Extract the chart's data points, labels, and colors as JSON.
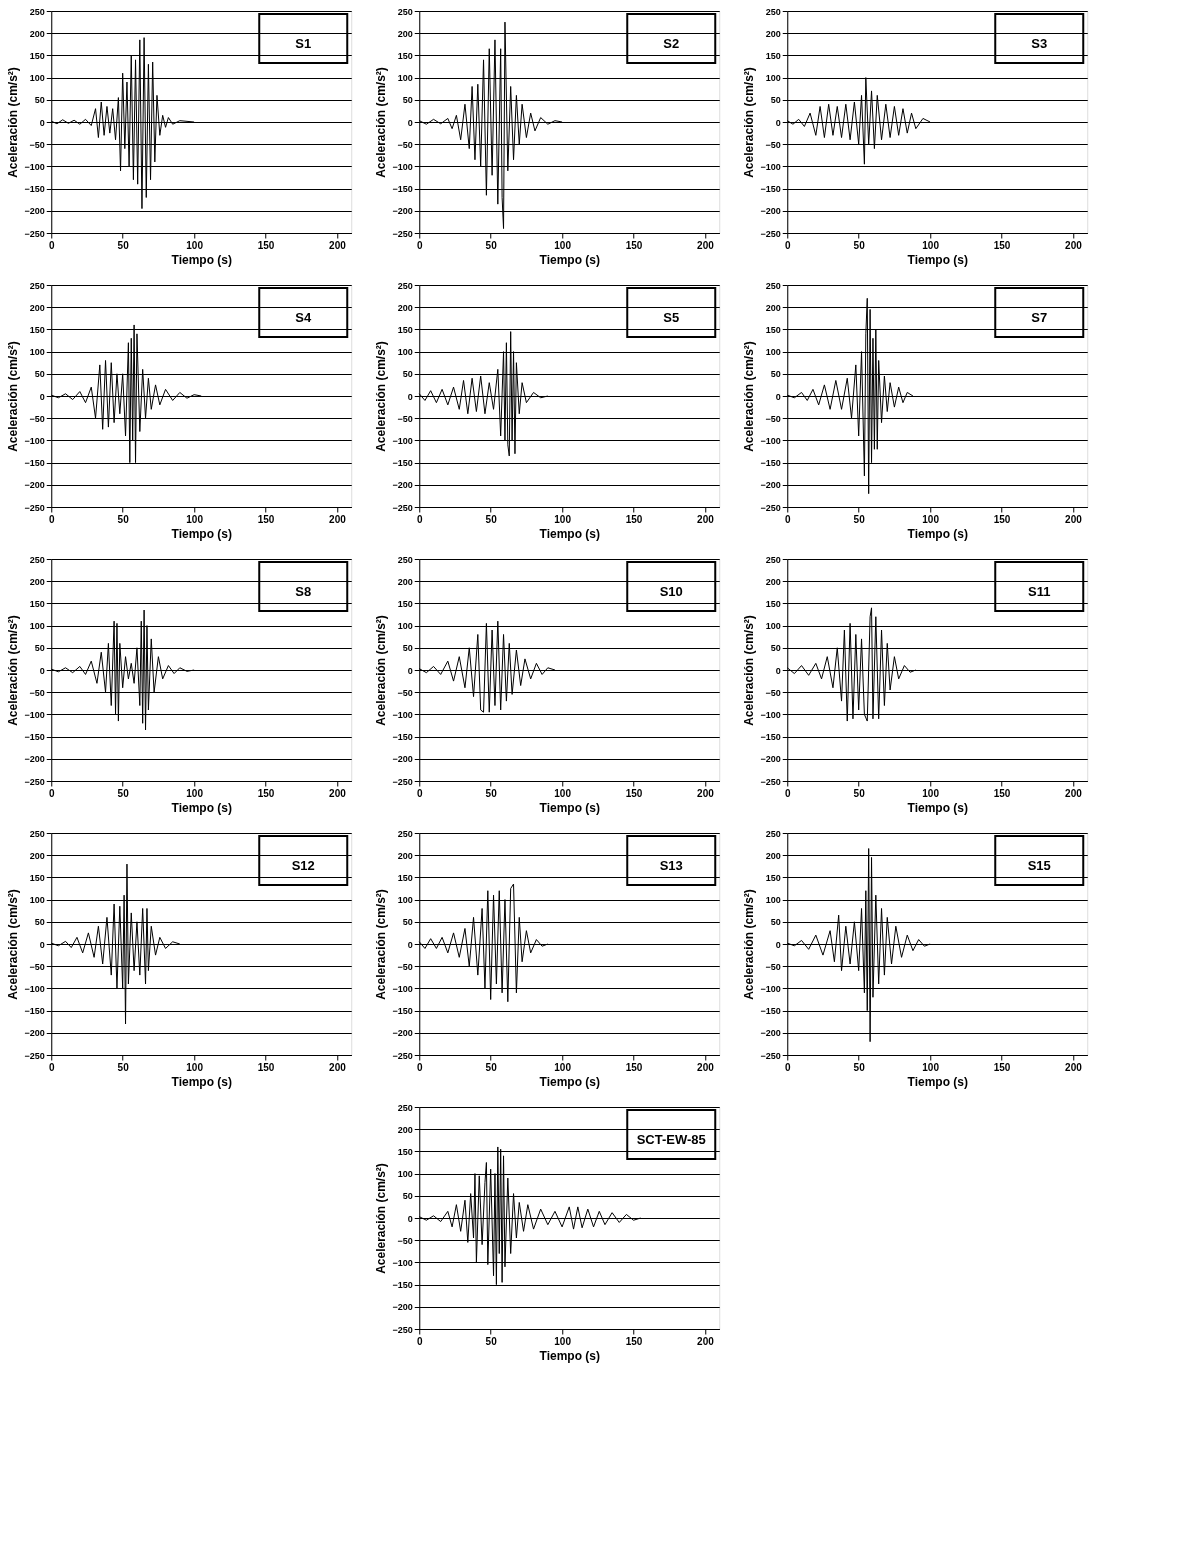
{
  "chart_data": [
    {
      "type": "line",
      "title": "S1",
      "xlabel": "Tiempo (s)",
      "ylabel": "Aceleración (cm/s²)",
      "xlim": [
        0,
        210
      ],
      "ylim": [
        -250,
        250
      ],
      "xticks": [
        0,
        50,
        100,
        150,
        200
      ],
      "yticks": [
        -250,
        -200,
        -150,
        -100,
        -50,
        0,
        50,
        100,
        150,
        200,
        250
      ],
      "grid": "y",
      "x": [
        0,
        4,
        8,
        12,
        16,
        20,
        24,
        28,
        31,
        33,
        35,
        37,
        39,
        41,
        43,
        45,
        47,
        48.5,
        50,
        51.5,
        53,
        54.5,
        56,
        57.5,
        59,
        60.5,
        62,
        63.5,
        65,
        66.5,
        68,
        69.5,
        71,
        72.5,
        74,
        76,
        78,
        80,
        82,
        85,
        90,
        100
      ],
      "series": [
        {
          "color": "#000000",
          "values": [
            2,
            -4,
            5,
            -3,
            4,
            -5,
            6,
            -8,
            30,
            -35,
            45,
            -30,
            35,
            -25,
            30,
            -40,
            55,
            -110,
            110,
            -60,
            90,
            -100,
            150,
            -130,
            140,
            -140,
            185,
            -195,
            190,
            -170,
            130,
            -130,
            135,
            -90,
            60,
            -30,
            15,
            -12,
            10,
            -5,
            3,
            0
          ]
        }
      ]
    },
    {
      "type": "line",
      "title": "S2",
      "xlabel": "Tiempo (s)",
      "ylabel": "Aceleración (cm/s²)",
      "xlim": [
        0,
        210
      ],
      "ylim": [
        -250,
        250
      ],
      "xticks": [
        0,
        50,
        100,
        150,
        200
      ],
      "yticks": [
        -250,
        -200,
        -150,
        -100,
        -50,
        0,
        50,
        100,
        150,
        200,
        250
      ],
      "grid": "y",
      "x": [
        0,
        5,
        10,
        15,
        20,
        23,
        26,
        29,
        32,
        35,
        37,
        39,
        41,
        43,
        45,
        47,
        49,
        51,
        53,
        55,
        57,
        58,
        59,
        60,
        62,
        64,
        66,
        68,
        70,
        72,
        75,
        78,
        81,
        85,
        90,
        95,
        100
      ],
      "series": [
        {
          "color": "#000000",
          "values": [
            3,
            -5,
            6,
            -4,
            8,
            -15,
            15,
            -40,
            40,
            -60,
            80,
            -85,
            85,
            -100,
            140,
            -165,
            165,
            -120,
            185,
            -185,
            165,
            -170,
            -240,
            225,
            -110,
            80,
            -85,
            60,
            -50,
            40,
            -35,
            20,
            -20,
            10,
            -5,
            3,
            0
          ]
        }
      ]
    },
    {
      "type": "line",
      "title": "S3",
      "xlabel": "Tiempo (s)",
      "ylabel": "Aceleración (cm/s²)",
      "xlim": [
        0,
        210
      ],
      "ylim": [
        -250,
        250
      ],
      "xticks": [
        0,
        50,
        100,
        150,
        200
      ],
      "yticks": [
        -250,
        -200,
        -150,
        -100,
        -50,
        0,
        50,
        100,
        150,
        200,
        250
      ],
      "grid": "y",
      "x": [
        0,
        4,
        8,
        12,
        16,
        20,
        23,
        26,
        29,
        32,
        35,
        38,
        41,
        44,
        47,
        50,
        52,
        54,
        55,
        57,
        59,
        61,
        63,
        66,
        69,
        72,
        75,
        78,
        81,
        84,
        87,
        90,
        95,
        100
      ],
      "series": [
        {
          "color": "#000000",
          "values": [
            3,
            -5,
            6,
            -10,
            20,
            -30,
            35,
            -35,
            40,
            -30,
            35,
            -35,
            40,
            -40,
            45,
            -50,
            60,
            -95,
            100,
            -50,
            70,
            -60,
            60,
            -40,
            40,
            -35,
            35,
            -30,
            30,
            -25,
            20,
            -15,
            8,
            0
          ]
        }
      ]
    },
    {
      "type": "line",
      "title": "S4",
      "xlabel": "Tiempo (s)",
      "ylabel": "Aceleración (cm/s²)",
      "xlim": [
        0,
        210
      ],
      "ylim": [
        -250,
        250
      ],
      "xticks": [
        0,
        50,
        100,
        150,
        200
      ],
      "yticks": [
        -250,
        -200,
        -150,
        -100,
        -50,
        0,
        50,
        100,
        150,
        200,
        250
      ],
      "grid": "y",
      "x": [
        0,
        5,
        10,
        15,
        20,
        24,
        28,
        31,
        34,
        36,
        38,
        40,
        42,
        44,
        46,
        48,
        50,
        52,
        54,
        55,
        56,
        57,
        58,
        59,
        60,
        62,
        64,
        66,
        68,
        70,
        73,
        76,
        80,
        85,
        90,
        95,
        100,
        105
      ],
      "series": [
        {
          "color": "#000000",
          "values": [
            2,
            -4,
            5,
            -8,
            10,
            -15,
            20,
            -50,
            70,
            -75,
            80,
            -70,
            75,
            -60,
            50,
            -40,
            50,
            -90,
            120,
            -150,
            130,
            -100,
            160,
            -150,
            140,
            -80,
            60,
            -50,
            40,
            -30,
            25,
            -20,
            15,
            -10,
            8,
            -5,
            3,
            0
          ]
        }
      ]
    },
    {
      "type": "line",
      "title": "S5",
      "xlabel": "Tiempo (s)",
      "ylabel": "Aceleración (cm/s²)",
      "xlim": [
        0,
        210
      ],
      "ylim": [
        -250,
        250
      ],
      "xticks": [
        0,
        50,
        100,
        150,
        200
      ],
      "yticks": [
        -250,
        -200,
        -150,
        -100,
        -50,
        0,
        50,
        100,
        150,
        200,
        250
      ],
      "grid": "y",
      "x": [
        0,
        4,
        8,
        12,
        16,
        20,
        24,
        28,
        31,
        34,
        37,
        40,
        43,
        46,
        49,
        52,
        55,
        57,
        59,
        60,
        61,
        62,
        63,
        64,
        65,
        66,
        67,
        68,
        70,
        72,
        75,
        80,
        85,
        90
      ],
      "series": [
        {
          "color": "#000000",
          "values": [
            5,
            -10,
            12,
            -15,
            15,
            -20,
            20,
            -30,
            35,
            -40,
            40,
            -35,
            45,
            -40,
            30,
            -30,
            60,
            -90,
            100,
            -100,
            120,
            -110,
            -135,
            145,
            -100,
            100,
            -130,
            75,
            -40,
            30,
            -15,
            8,
            -4,
            0
          ]
        }
      ]
    },
    {
      "type": "line",
      "title": "S7",
      "xlabel": "Tiempo (s)",
      "ylabel": "Aceleración (cm/s²)",
      "xlim": [
        0,
        210
      ],
      "ylim": [
        -250,
        250
      ],
      "xticks": [
        0,
        50,
        100,
        150,
        200
      ],
      "yticks": [
        -250,
        -200,
        -150,
        -100,
        -50,
        0,
        50,
        100,
        150,
        200,
        250
      ],
      "grid": "y",
      "x": [
        0,
        5,
        10,
        14,
        18,
        22,
        26,
        30,
        34,
        38,
        42,
        45,
        48,
        50,
        52,
        54,
        55,
        56,
        57,
        58,
        59,
        60,
        61,
        62,
        63,
        64,
        66,
        68,
        70,
        72,
        75,
        78,
        81,
        84,
        88
      ],
      "series": [
        {
          "color": "#000000",
          "values": [
            2,
            -4,
            8,
            -10,
            15,
            -20,
            25,
            -30,
            35,
            -30,
            40,
            -50,
            70,
            -90,
            100,
            -180,
            140,
            220,
            -220,
            195,
            -150,
            130,
            -120,
            150,
            -120,
            80,
            -60,
            45,
            -35,
            30,
            -25,
            20,
            -15,
            8,
            0
          ]
        }
      ]
    },
    {
      "type": "line",
      "title": "S8",
      "xlabel": "Tiempo (s)",
      "ylabel": "Aceleración (cm/s²)",
      "xlim": [
        0,
        210
      ],
      "ylim": [
        -250,
        250
      ],
      "xticks": [
        0,
        50,
        100,
        150,
        200
      ],
      "yticks": [
        -250,
        -200,
        -150,
        -100,
        -50,
        0,
        50,
        100,
        150,
        200,
        250
      ],
      "grid": "y",
      "x": [
        0,
        5,
        10,
        15,
        20,
        24,
        28,
        32,
        35,
        38,
        40,
        42,
        44,
        45,
        46,
        47,
        48,
        50,
        52,
        54,
        56,
        58,
        60,
        62,
        63,
        64,
        65,
        66,
        67,
        68,
        70,
        72,
        75,
        78,
        82,
        86,
        90,
        95,
        100
      ],
      "series": [
        {
          "color": "#000000",
          "values": [
            2,
            -4,
            5,
            -6,
            8,
            -10,
            20,
            -30,
            40,
            -50,
            60,
            -80,
            110,
            -100,
            105,
            -115,
            60,
            -40,
            30,
            -20,
            15,
            -30,
            50,
            -80,
            110,
            -120,
            135,
            -135,
            100,
            -90,
            70,
            -50,
            30,
            -20,
            10,
            -8,
            5,
            -3,
            0
          ]
        }
      ]
    },
    {
      "type": "line",
      "title": "S10",
      "xlabel": "Tiempo (s)",
      "ylabel": "Aceleración (cm/s²)",
      "xlim": [
        0,
        210
      ],
      "ylim": [
        -250,
        250
      ],
      "xticks": [
        0,
        50,
        100,
        150,
        200
      ],
      "yticks": [
        -250,
        -200,
        -150,
        -100,
        -50,
        0,
        50,
        100,
        150,
        200,
        250
      ],
      "grid": "y",
      "x": [
        0,
        5,
        10,
        15,
        20,
        24,
        28,
        32,
        35,
        38,
        41,
        43,
        45,
        47,
        49,
        51,
        53,
        55,
        57,
        59,
        61,
        63,
        65,
        68,
        71,
        74,
        78,
        82,
        86,
        90,
        95
      ],
      "series": [
        {
          "color": "#000000",
          "values": [
            3,
            -6,
            8,
            -10,
            20,
            -25,
            30,
            -40,
            50,
            -60,
            80,
            -90,
            -95,
            105,
            -95,
            90,
            -80,
            110,
            -90,
            80,
            -70,
            60,
            -55,
            45,
            -35,
            25,
            -20,
            15,
            -10,
            5,
            0
          ]
        }
      ]
    },
    {
      "type": "line",
      "title": "S11",
      "xlabel": "Tiempo (s)",
      "ylabel": "Aceleración (cm/s²)",
      "xlim": [
        0,
        210
      ],
      "ylim": [
        -250,
        250
      ],
      "xticks": [
        0,
        50,
        100,
        150,
        200
      ],
      "yticks": [
        -250,
        -200,
        -150,
        -100,
        -50,
        0,
        50,
        100,
        150,
        200,
        250
      ],
      "grid": "y",
      "x": [
        0,
        5,
        10,
        15,
        20,
        24,
        28,
        32,
        35,
        38,
        40,
        42,
        44,
        46,
        48,
        50,
        52,
        54,
        56,
        58,
        59,
        60,
        62,
        64,
        66,
        68,
        70,
        72,
        75,
        78,
        82,
        86,
        90
      ],
      "series": [
        {
          "color": "#000000",
          "values": [
            5,
            -8,
            10,
            -12,
            15,
            -20,
            30,
            -40,
            50,
            -70,
            90,
            -115,
            105,
            -110,
            80,
            -90,
            70,
            -100,
            -115,
            120,
            140,
            -110,
            120,
            -110,
            90,
            -80,
            60,
            -45,
            30,
            -20,
            10,
            -5,
            0
          ]
        }
      ]
    },
    {
      "type": "line",
      "title": "S12",
      "xlabel": "Tiempo (s)",
      "ylabel": "Aceleración (cm/s²)",
      "xlim": [
        0,
        210
      ],
      "ylim": [
        -250,
        250
      ],
      "xticks": [
        0,
        50,
        100,
        150,
        200
      ],
      "yticks": [
        -250,
        -200,
        -150,
        -100,
        -50,
        0,
        50,
        100,
        150,
        200,
        250
      ],
      "grid": "y",
      "x": [
        0,
        5,
        10,
        14,
        18,
        22,
        26,
        30,
        33,
        36,
        39,
        42,
        44,
        46,
        48,
        50,
        51,
        52,
        53,
        54,
        56,
        58,
        60,
        62,
        64,
        66,
        67,
        68,
        70,
        73,
        76,
        80,
        85,
        90
      ],
      "series": [
        {
          "color": "#000000",
          "values": [
            2,
            -4,
            6,
            -8,
            15,
            -20,
            25,
            -30,
            40,
            -45,
            60,
            -70,
            90,
            -100,
            85,
            -100,
            110,
            -180,
            180,
            -90,
            70,
            -60,
            50,
            -70,
            80,
            -90,
            80,
            -60,
            40,
            -25,
            15,
            -10,
            5,
            0
          ]
        }
      ]
    },
    {
      "type": "line",
      "title": "S13",
      "xlabel": "Tiempo (s)",
      "ylabel": "Aceleración (cm/s²)",
      "xlim": [
        0,
        210
      ],
      "ylim": [
        -250,
        250
      ],
      "xticks": [
        0,
        50,
        100,
        150,
        200
      ],
      "yticks": [
        -250,
        -200,
        -150,
        -100,
        -50,
        0,
        50,
        100,
        150,
        200,
        250
      ],
      "grid": "y",
      "x": [
        0,
        4,
        8,
        12,
        16,
        20,
        24,
        28,
        32,
        35,
        38,
        41,
        44,
        46,
        48,
        50,
        52,
        54,
        56,
        58,
        60,
        62,
        64,
        66,
        68,
        70,
        72,
        75,
        78,
        82,
        86,
        90
      ],
      "series": [
        {
          "color": "#000000",
          "values": [
            5,
            -10,
            12,
            -10,
            15,
            -20,
            25,
            -30,
            35,
            -50,
            60,
            -70,
            80,
            -100,
            120,
            -125,
            110,
            -90,
            120,
            -110,
            100,
            -130,
            125,
            135,
            -110,
            60,
            -40,
            30,
            -20,
            10,
            -5,
            0
          ]
        }
      ]
    },
    {
      "type": "line",
      "title": "S15",
      "xlabel": "Tiempo (s)",
      "ylabel": "Aceleración (cm/s²)",
      "xlim": [
        0,
        210
      ],
      "ylim": [
        -250,
        250
      ],
      "xticks": [
        0,
        50,
        100,
        150,
        200
      ],
      "yticks": [
        -250,
        -200,
        -150,
        -100,
        -50,
        0,
        50,
        100,
        150,
        200,
        250
      ],
      "grid": "y",
      "x": [
        0,
        5,
        10,
        15,
        20,
        25,
        30,
        33,
        36,
        38,
        41,
        44,
        47,
        50,
        52,
        54,
        55,
        56,
        57,
        58,
        59,
        60,
        62,
        64,
        66,
        68,
        70,
        73,
        76,
        80,
        84,
        88,
        92,
        96,
        100
      ],
      "series": [
        {
          "color": "#000000",
          "values": [
            2,
            -4,
            8,
            -12,
            20,
            -25,
            30,
            -40,
            65,
            -60,
            40,
            -45,
            50,
            -60,
            80,
            -110,
            120,
            -150,
            215,
            -220,
            195,
            -120,
            110,
            -90,
            80,
            -70,
            60,
            -45,
            40,
            -30,
            20,
            -15,
            10,
            -5,
            0
          ]
        }
      ]
    },
    {
      "type": "line",
      "title": "SCT-EW-85",
      "xlabel": "Tiempo (s)",
      "ylabel": "Aceleración (cm/s²)",
      "xlim": [
        0,
        210
      ],
      "ylim": [
        -250,
        250
      ],
      "xticks": [
        0,
        50,
        100,
        150,
        200
      ],
      "yticks": [
        -250,
        -200,
        -150,
        -100,
        -50,
        0,
        50,
        100,
        150,
        200,
        250
      ],
      "grid": "y",
      "x": [
        0,
        5,
        10,
        15,
        20,
        23,
        26,
        29,
        32,
        34,
        36,
        38,
        39,
        40,
        42,
        44,
        46,
        47,
        48,
        50,
        52,
        53,
        54,
        55,
        56,
        57,
        58,
        59,
        60,
        62,
        64,
        66,
        68,
        70,
        73,
        76,
        80,
        85,
        90,
        95,
        100,
        105,
        108,
        111,
        114,
        118,
        122,
        126,
        130,
        135,
        140,
        145,
        150,
        155
      ],
      "series": [
        {
          "color": "#000000",
          "values": [
            3,
            -5,
            5,
            -8,
            15,
            -20,
            30,
            -30,
            40,
            -55,
            55,
            -45,
            100,
            -100,
            95,
            -60,
            80,
            125,
            -105,
            110,
            -130,
            100,
            -150,
            160,
            -80,
            155,
            -145,
            140,
            -110,
            90,
            -80,
            55,
            -45,
            35,
            -30,
            30,
            -25,
            20,
            -15,
            15,
            -20,
            25,
            -25,
            25,
            -22,
            20,
            -20,
            15,
            -15,
            12,
            -10,
            8,
            -5,
            0
          ]
        }
      ]
    }
  ]
}
